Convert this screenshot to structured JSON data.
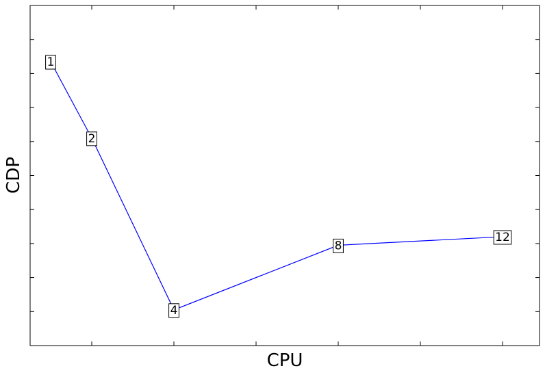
{
  "chart_data": {
    "type": "line",
    "title": "",
    "xlabel": "CPU",
    "ylabel": "CDP",
    "grid": false,
    "legend": "none",
    "xlim": [
      0.5,
      12.9
    ],
    "ylim": [
      0,
      10
    ],
    "tick_labels_shown": false,
    "line_color": "#0000ff",
    "series": [
      {
        "name": "CDP",
        "points": [
          {
            "x": 1,
            "y": 8.35,
            "label": "1"
          },
          {
            "x": 2,
            "y": 6.1,
            "label": "2"
          },
          {
            "x": 4,
            "y": 1.05,
            "label": "4"
          },
          {
            "x": 8,
            "y": 2.95,
            "label": "8"
          },
          {
            "x": 12,
            "y": 3.2,
            "label": "12"
          }
        ]
      }
    ]
  }
}
